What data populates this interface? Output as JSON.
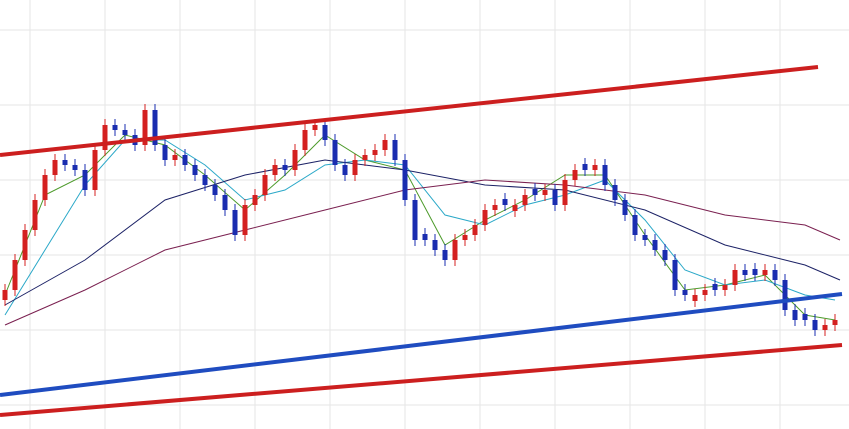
{
  "chart_data": {
    "type": "candlestick",
    "xlim": [
      0,
      849
    ],
    "ylim": [
      0,
      429
    ],
    "xticks": [
      30,
      105,
      180,
      255,
      330,
      405,
      480,
      555,
      630,
      705,
      780
    ],
    "yticks": [
      24,
      99,
      174,
      249,
      324,
      399
    ],
    "grid": true,
    "up_color": "#d42020",
    "down_color": "#1a2db0",
    "x": [
      5,
      15,
      25,
      35,
      45,
      55,
      65,
      75,
      85,
      95,
      105,
      115,
      125,
      135,
      145,
      155,
      165,
      175,
      185,
      195,
      205,
      215,
      225,
      235,
      245,
      255,
      265,
      275,
      285,
      295,
      305,
      315,
      325,
      335,
      345,
      355,
      365,
      375,
      385,
      395,
      405,
      415,
      425,
      435,
      445,
      455,
      465,
      475,
      485,
      495,
      505,
      515,
      525,
      535,
      545,
      555,
      565,
      575,
      585,
      595,
      605,
      615,
      625,
      635,
      645,
      655,
      665,
      675,
      685,
      695,
      705,
      715,
      725,
      735,
      745,
      755,
      765,
      775,
      785,
      795,
      805,
      815,
      825,
      835
    ],
    "open": [
      129,
      139,
      169,
      199,
      229,
      254,
      269,
      264,
      259,
      239,
      279,
      304,
      299,
      294,
      284,
      319,
      284,
      269,
      274,
      264,
      254,
      244,
      234,
      219,
      194,
      224,
      234,
      254,
      264,
      259,
      279,
      299,
      304,
      289,
      264,
      254,
      269,
      274,
      279,
      289,
      269,
      229,
      195,
      189,
      179,
      169,
      189,
      194,
      204,
      219,
      230,
      218,
      224,
      240,
      234,
      239,
      224,
      249,
      265,
      259,
      264,
      244,
      229,
      214,
      194,
      189,
      179,
      169,
      139,
      128,
      134,
      145,
      139,
      144,
      159,
      160,
      154,
      159,
      149,
      119,
      115,
      109,
      99,
      104
    ],
    "high": [
      145,
      175,
      205,
      235,
      260,
      275,
      275,
      270,
      265,
      285,
      310,
      310,
      305,
      300,
      325,
      325,
      290,
      280,
      280,
      270,
      260,
      250,
      240,
      225,
      230,
      240,
      260,
      270,
      270,
      285,
      305,
      310,
      310,
      295,
      270,
      275,
      280,
      285,
      295,
      295,
      275,
      235,
      201,
      195,
      185,
      195,
      200,
      210,
      225,
      230,
      236,
      230,
      240,
      246,
      245,
      245,
      255,
      265,
      271,
      270,
      270,
      250,
      235,
      220,
      200,
      195,
      185,
      175,
      145,
      140,
      145,
      151,
      150,
      165,
      165,
      166,
      165,
      165,
      155,
      125,
      121,
      115,
      110,
      115
    ],
    "low": [
      123,
      133,
      163,
      193,
      223,
      248,
      258,
      253,
      233,
      233,
      273,
      293,
      288,
      278,
      278,
      278,
      263,
      263,
      258,
      248,
      238,
      228,
      213,
      188,
      188,
      218,
      228,
      248,
      253,
      253,
      273,
      293,
      283,
      258,
      248,
      248,
      263,
      268,
      273,
      263,
      223,
      183,
      183,
      173,
      163,
      163,
      183,
      188,
      198,
      213,
      218,
      212,
      218,
      228,
      228,
      218,
      218,
      243,
      253,
      253,
      238,
      223,
      208,
      188,
      183,
      173,
      163,
      133,
      128,
      122,
      128,
      133,
      133,
      138,
      148,
      148,
      148,
      143,
      113,
      103,
      103,
      93,
      93,
      98
    ],
    "close": [
      139,
      169,
      199,
      229,
      254,
      269,
      264,
      259,
      239,
      279,
      304,
      299,
      294,
      284,
      319,
      284,
      269,
      274,
      264,
      254,
      244,
      234,
      219,
      194,
      224,
      234,
      254,
      264,
      259,
      279,
      299,
      304,
      289,
      264,
      254,
      269,
      274,
      279,
      289,
      269,
      229,
      189,
      189,
      179,
      169,
      189,
      194,
      204,
      219,
      224,
      224,
      224,
      234,
      234,
      239,
      224,
      249,
      259,
      259,
      264,
      244,
      229,
      214,
      194,
      189,
      179,
      169,
      139,
      134,
      134,
      139,
      139,
      144,
      159,
      154,
      154,
      159,
      149,
      119,
      109,
      109,
      99,
      104,
      109
    ],
    "lines": [
      {
        "color": "#4c9a2a",
        "x": [
          5,
          45,
          85,
          125,
          165,
          205,
          245,
          285,
          325,
          365,
          405,
          445,
          485,
          525,
          565,
          605,
          645,
          685,
          725,
          765,
          805,
          835
        ],
        "values": [
          134,
          234,
          254,
          294,
          284,
          254,
          219,
          254,
          294,
          269,
          259,
          184,
          209,
          229,
          254,
          254,
          194,
          139,
          144,
          154,
          114,
          109
        ]
      },
      {
        "color": "#2aa8c8",
        "x": [
          5,
          45,
          85,
          125,
          165,
          205,
          245,
          285,
          325,
          365,
          405,
          445,
          485,
          525,
          565,
          605,
          645,
          685,
          725,
          765,
          805,
          835
        ],
        "values": [
          114,
          179,
          244,
          289,
          289,
          264,
          229,
          239,
          264,
          269,
          264,
          214,
          204,
          224,
          234,
          249,
          209,
          159,
          144,
          149,
          134,
          129
        ]
      },
      {
        "color": "#1c2266",
        "x": [
          5,
          85,
          165,
          245,
          325,
          405,
          485,
          565,
          645,
          725,
          805,
          840
        ],
        "values": [
          124,
          169,
          229,
          254,
          269,
          259,
          244,
          239,
          219,
          184,
          164,
          149
        ]
      },
      {
        "color": "#7a2050",
        "x": [
          5,
          85,
          165,
          245,
          325,
          405,
          485,
          565,
          645,
          725,
          805,
          840
        ],
        "values": [
          104,
          139,
          179,
          199,
          219,
          239,
          249,
          244,
          234,
          214,
          204,
          189
        ]
      }
    ],
    "trendlines": [
      {
        "color": "#cc1f1f",
        "x": [
          0,
          818
        ],
        "values": [
          274,
          362
        ]
      },
      {
        "color": "#cc1f1f",
        "x": [
          0,
          842
        ],
        "values": [
          14,
          84
        ]
      },
      {
        "color": "#1f4cc0",
        "x": [
          0,
          842
        ],
        "values": [
          34,
          135
        ]
      }
    ]
  }
}
